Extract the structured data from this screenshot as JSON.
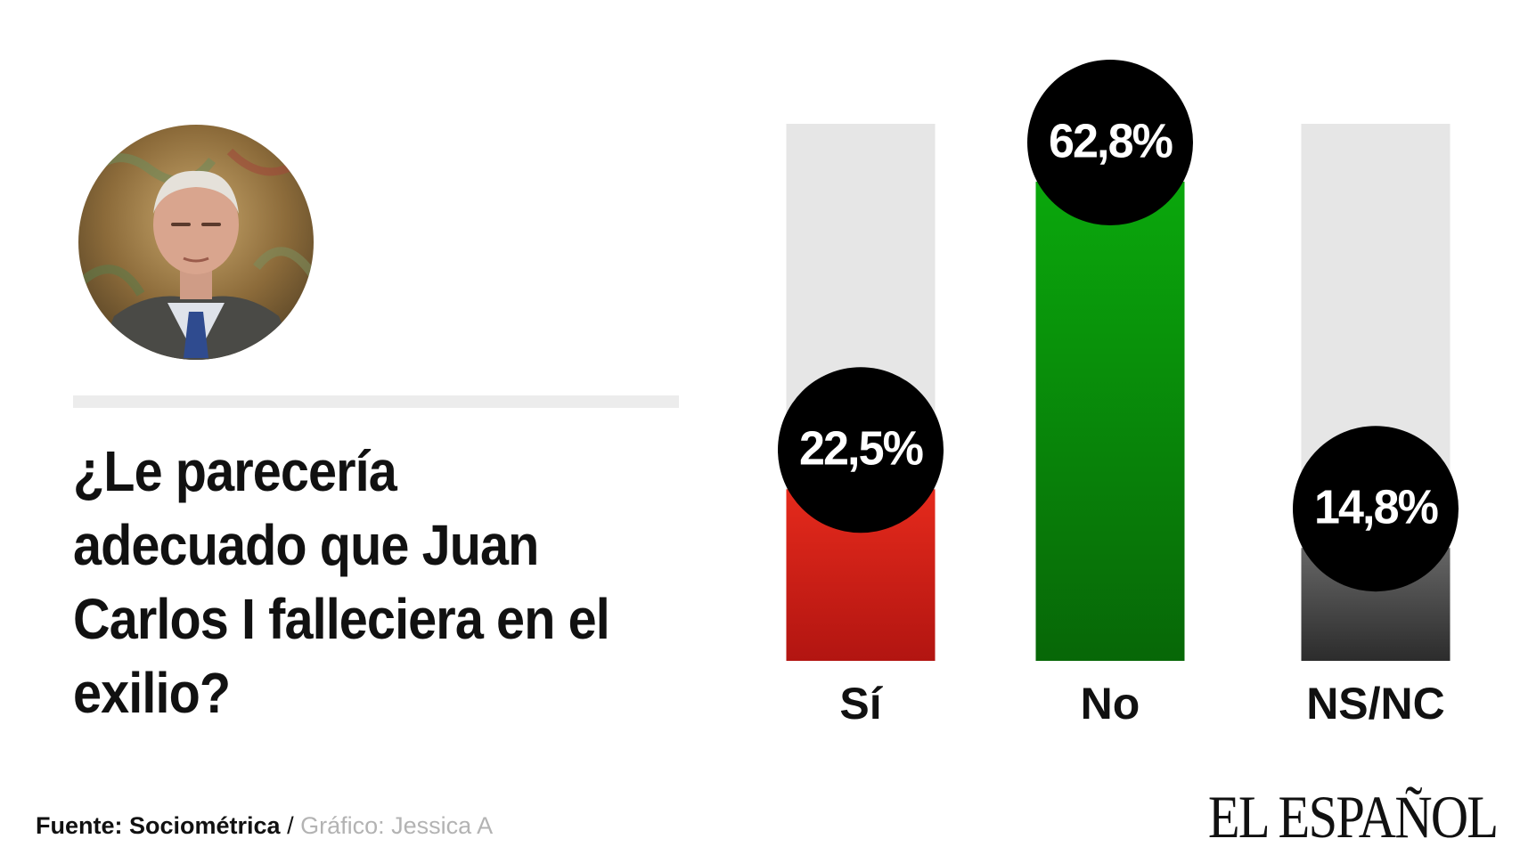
{
  "question": "¿Le parecería adecuado que Juan Carlos I falleciera en el exilio?",
  "footer": {
    "source": "Fuente: Sociométrica",
    "separator": " / ",
    "credit": "Gráfico: Jessica A"
  },
  "brand": "EL ESPAÑOL",
  "colors": {
    "track": "#e6e6e6",
    "bubble": "#000000"
  },
  "chart_data": {
    "type": "bar",
    "categories": [
      "Sí",
      "No",
      "NS/NC"
    ],
    "values": [
      22.5,
      62.8,
      14.8
    ],
    "value_labels": [
      "22,5%",
      "62,8%",
      "14,8%"
    ],
    "ylim": [
      0,
      62.8
    ],
    "grid": false,
    "colors": [
      [
        "#e52a1c",
        "#b21511"
      ],
      [
        "#0aa80c",
        "#076707"
      ],
      [
        "#666666",
        "#2c2c2c"
      ]
    ]
  }
}
